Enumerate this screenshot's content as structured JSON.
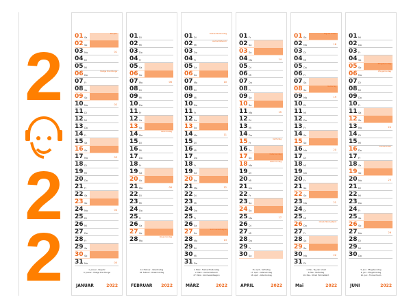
{
  "logo": {
    "digits": [
      "2",
      "2",
      "2"
    ],
    "icon": "smiley-headset-icon",
    "color": "#ff7f00"
  },
  "weekday_labels": [
    "Mo",
    "Di",
    "Mi",
    "Do",
    "Fr",
    "Sa",
    "So"
  ],
  "colors": {
    "accent": "#ee6a1f",
    "saturday": "#fdd5bb",
    "sunday": "#f9a56e"
  },
  "year_label": "2022",
  "months": [
    {
      "name": "JANUAR",
      "first_weekday": "Sa",
      "days": 31,
      "holidays": [
        {
          "day": 1,
          "label": "Neujahr"
        },
        {
          "day": 6,
          "label": "Heilige Drei Könige"
        }
      ],
      "notes": [
        "1. Januar - Neujahr",
        "6. Januar - Heilige Drei Könige"
      ]
    },
    {
      "name": "FEBRUAR",
      "first_weekday": "Di",
      "days": 28,
      "holidays": [
        {
          "day": 14,
          "label": "Valentinstag"
        },
        {
          "day": 28,
          "label": "Rosenmontag"
        }
      ],
      "notes": [
        "14. Februar - Valentinstag",
        "28. Februar - Rosenmontag"
      ]
    },
    {
      "name": "MÄRZ",
      "first_weekday": "Di",
      "days": 31,
      "holidays": [
        {
          "day": 1,
          "label": "Fastnachtsdienstag"
        },
        {
          "day": 2,
          "label": "Aschermittwoch"
        },
        {
          "day": 27,
          "label": "Sommerzeitbeginn"
        }
      ],
      "notes": [
        "1. März - Fastnachtsdienstag",
        "2. März - Aschermittwoch",
        "27. März - Sommerzeitbeginn"
      ]
    },
    {
      "name": "APRIL",
      "first_weekday": "Fr",
      "days": 30,
      "holidays": [
        {
          "day": 15,
          "label": "Karfreitag"
        },
        {
          "day": 17,
          "label": "Ostersonntag"
        },
        {
          "day": 18,
          "label": "Ostermontag"
        }
      ],
      "notes": [
        "15. April - Karfreitag",
        "17. April - Ostersonntag",
        "18. April - Ostermontag"
      ]
    },
    {
      "name": "Mai",
      "first_weekday": "So",
      "days": 31,
      "holidays": [
        {
          "day": 1,
          "label": "Tag der Arbeit"
        },
        {
          "day": 8,
          "label": "Muttertag"
        },
        {
          "day": 26,
          "label": "Christi Himmelfahrt"
        }
      ],
      "notes": [
        "1. Mai - Tag der Arbeit",
        "8. Mai - Muttertag",
        "26. Mai - Christi Himmelfahrt"
      ]
    },
    {
      "name": "JUNI",
      "first_weekday": "Mi",
      "days": 30,
      "holidays": [
        {
          "day": 5,
          "label": "Pfingstsonntag"
        },
        {
          "day": 6,
          "label": "Pfingstmontag"
        },
        {
          "day": 16,
          "label": "Fronleichnam"
        }
      ],
      "notes": [
        "5. Juni - Pfingstsonntag",
        "6. Juni - Pfingstmontag",
        "16. Juni - Fronleichnam"
      ]
    }
  ]
}
